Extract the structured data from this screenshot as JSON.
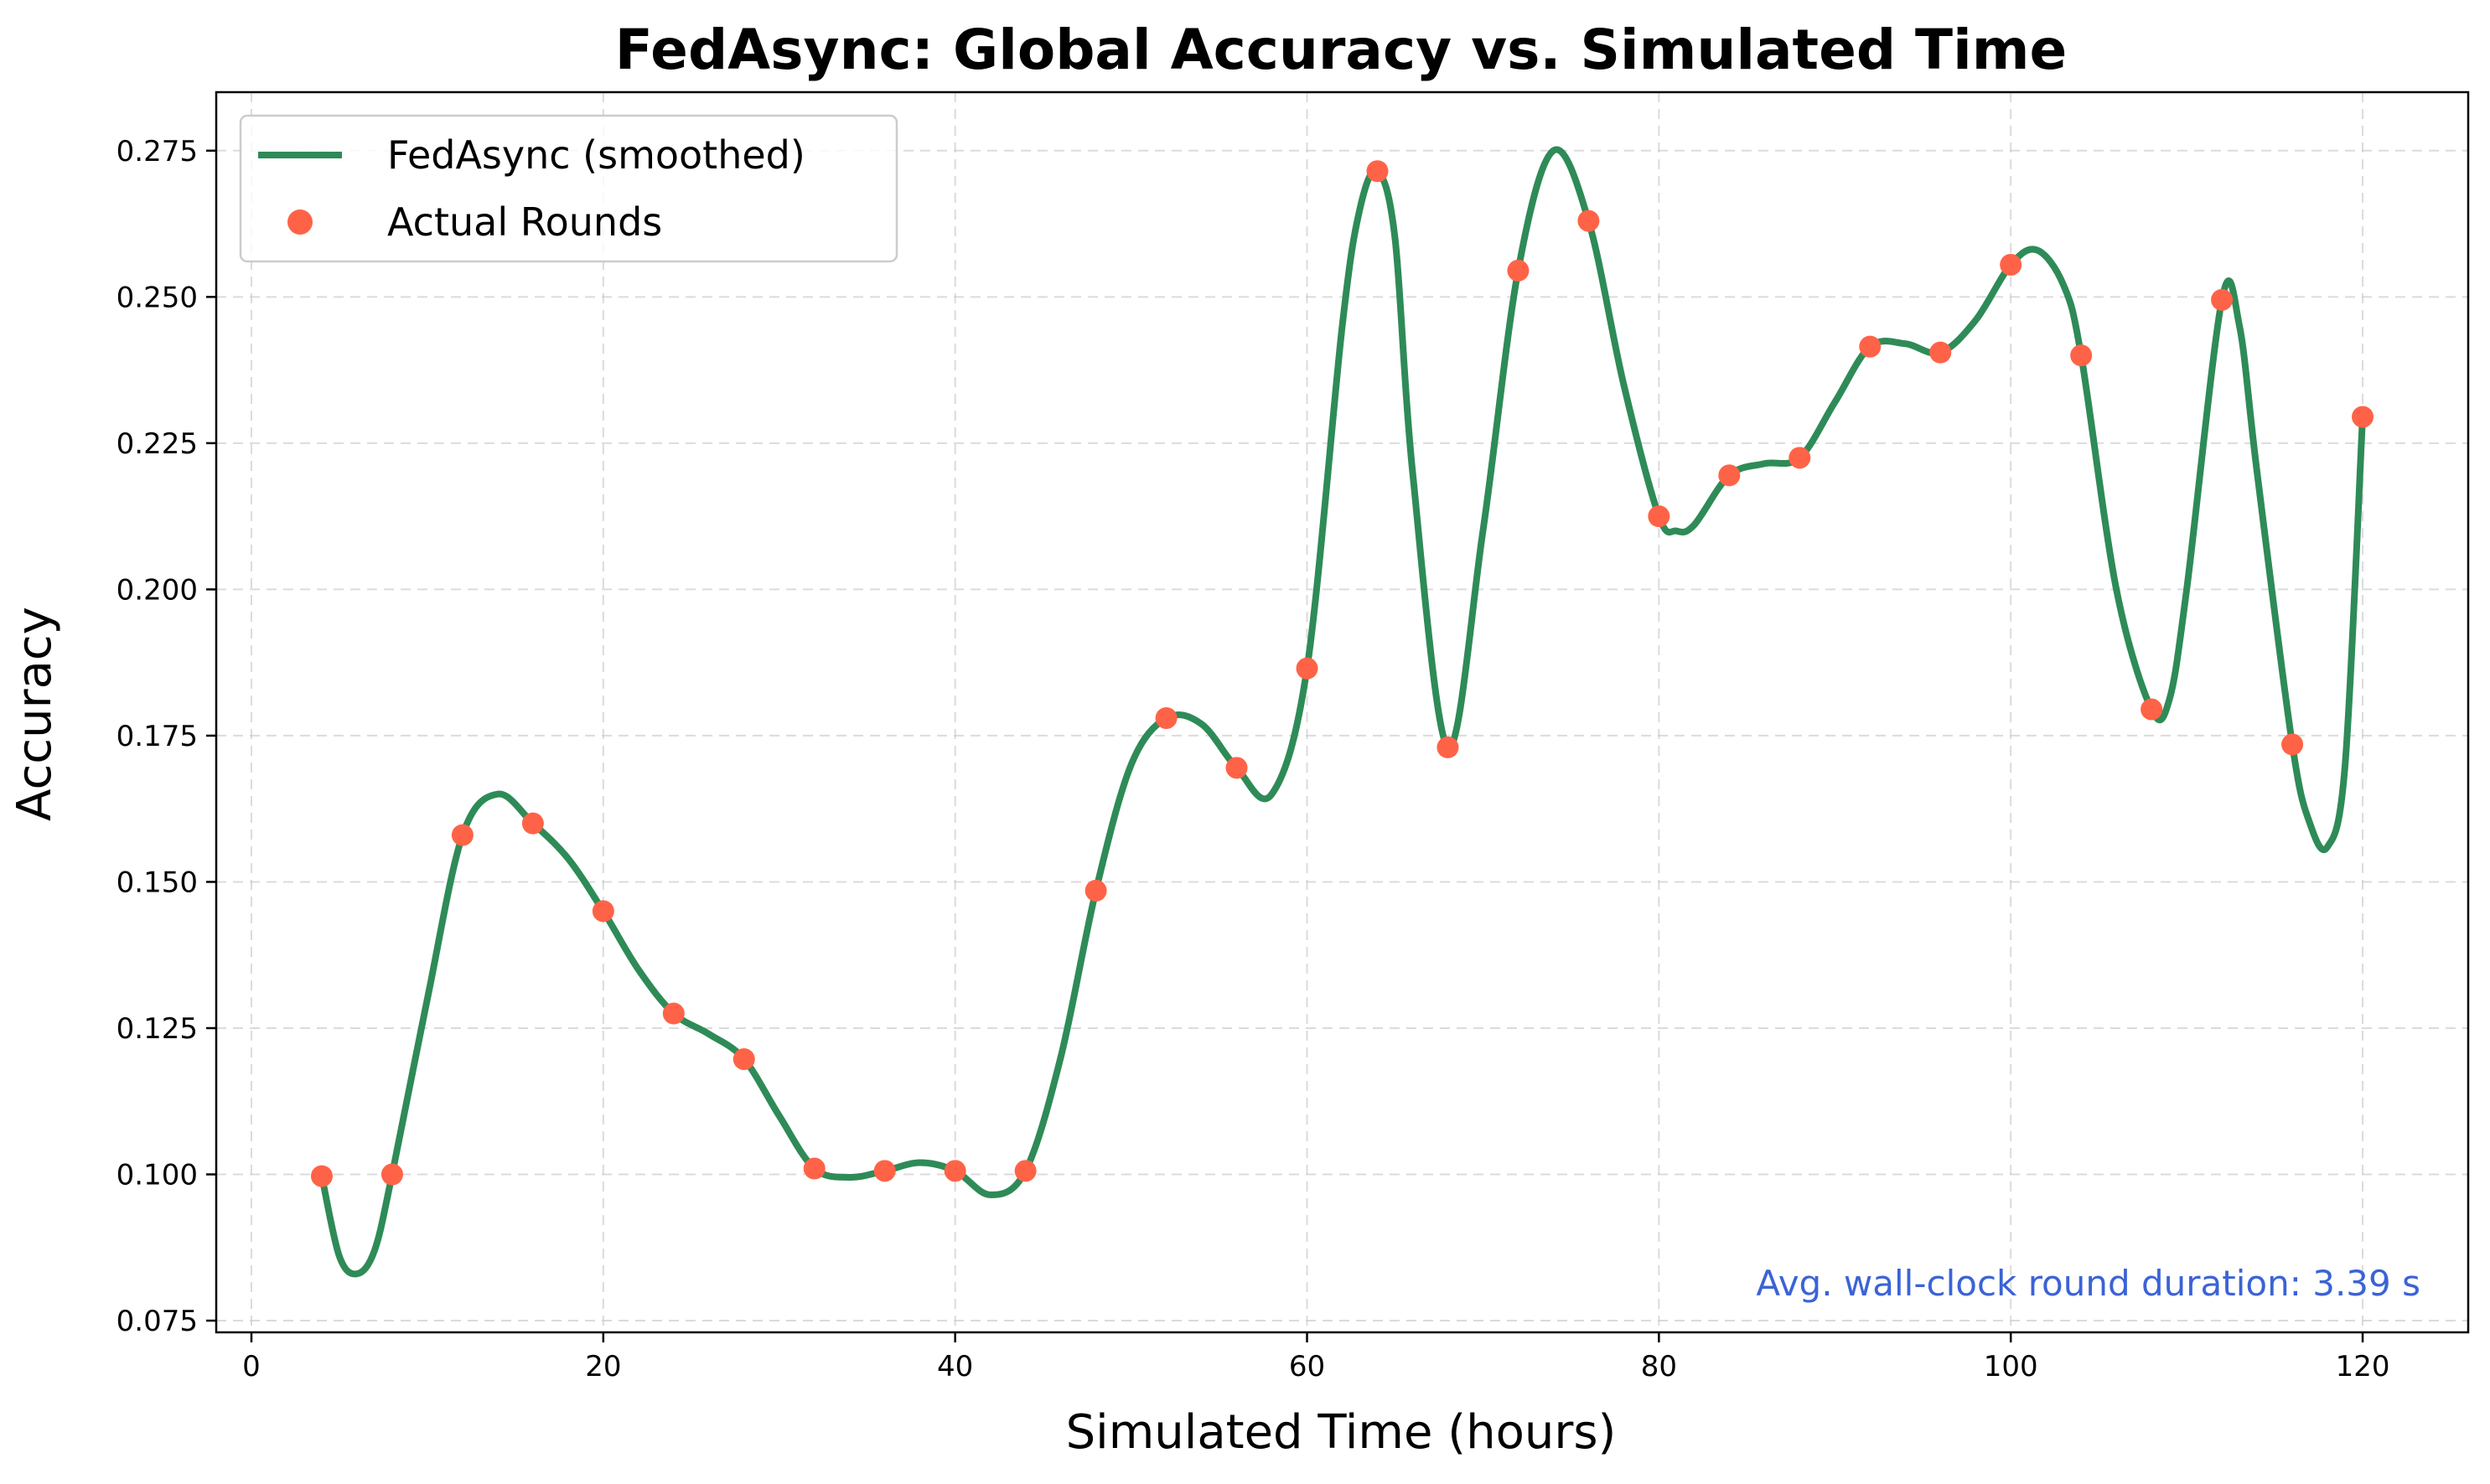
{
  "chart_data": {
    "type": "line",
    "title": "FedAsync: Global Accuracy vs. Simulated Time",
    "xlabel": "Simulated Time (hours)",
    "ylabel": "Accuracy",
    "xlim": [
      -2,
      126
    ],
    "ylim": [
      0.073,
      0.285
    ],
    "xticks": [
      0,
      20,
      40,
      60,
      80,
      100,
      120
    ],
    "xtick_labels": [
      "0",
      "20",
      "40",
      "60",
      "80",
      "100",
      "120"
    ],
    "yticks": [
      0.075,
      0.1,
      0.125,
      0.15,
      0.175,
      0.2,
      0.225,
      0.25,
      0.275
    ],
    "ytick_labels": [
      "0.075",
      "0.100",
      "0.125",
      "0.150",
      "0.175",
      "0.200",
      "0.225",
      "0.250",
      "0.275"
    ],
    "grid": true,
    "legend_position": "top-left",
    "series": [
      {
        "name": "FedAsync (smoothed)",
        "kind": "smoothed-line",
        "color": "#2e8b57",
        "x": [
          4,
          5,
          6,
          7,
          8,
          10,
          12,
          14,
          16,
          18,
          20,
          22,
          24,
          26,
          28,
          30,
          32,
          34,
          36,
          38,
          40,
          42,
          44,
          46,
          48,
          50,
          52,
          54,
          56,
          58,
          60,
          62,
          63,
          64,
          65,
          66,
          68,
          70,
          72,
          74,
          76,
          78,
          80,
          81,
          82,
          84,
          86,
          88,
          90,
          92,
          94,
          96,
          98,
          100,
          101.5,
          103,
          104,
          106,
          108,
          109,
          110,
          112,
          113,
          114,
          116,
          117,
          118,
          119,
          120
        ],
        "y": [
          0.0997,
          0.086,
          0.083,
          0.087,
          0.1,
          0.13,
          0.158,
          0.165,
          0.16,
          0.154,
          0.145,
          0.135,
          0.1275,
          0.124,
          0.1197,
          0.11,
          0.101,
          0.0995,
          0.1006,
          0.102,
          0.1006,
          0.0965,
          0.1006,
          0.12,
          0.1485,
          0.17,
          0.178,
          0.177,
          0.1695,
          0.165,
          0.1865,
          0.245,
          0.265,
          0.2715,
          0.26,
          0.22,
          0.173,
          0.21,
          0.2545,
          0.275,
          0.263,
          0.235,
          0.2125,
          0.21,
          0.211,
          0.2195,
          0.2215,
          0.2225,
          0.232,
          0.2415,
          0.242,
          0.2405,
          0.246,
          0.2555,
          0.258,
          0.252,
          0.24,
          0.2,
          0.1795,
          0.181,
          0.2,
          0.2495,
          0.245,
          0.22,
          0.1735,
          0.16,
          0.156,
          0.17,
          0.2295
        ]
      },
      {
        "name": "Actual Rounds",
        "kind": "scatter",
        "color": "#ff6347",
        "x": [
          4,
          8,
          12,
          16,
          20,
          24,
          28,
          32,
          36,
          40,
          44,
          48,
          52,
          56,
          60,
          64,
          68,
          72,
          76,
          80,
          84,
          88,
          92,
          96,
          100,
          104,
          108,
          112,
          116,
          120
        ],
        "y": [
          0.0997,
          0.1,
          0.158,
          0.16,
          0.145,
          0.1275,
          0.1197,
          0.101,
          0.1006,
          0.1006,
          0.1006,
          0.1485,
          0.178,
          0.1695,
          0.1865,
          0.2715,
          0.173,
          0.2545,
          0.263,
          0.2125,
          0.2195,
          0.2225,
          0.2415,
          0.2405,
          0.2555,
          0.24,
          0.1795,
          0.2495,
          0.1735,
          0.2295
        ]
      }
    ],
    "annotation": {
      "text": "Avg. wall-clock round duration: 3.39 s",
      "color": "#3b63d6",
      "position": "bottom-right"
    }
  }
}
